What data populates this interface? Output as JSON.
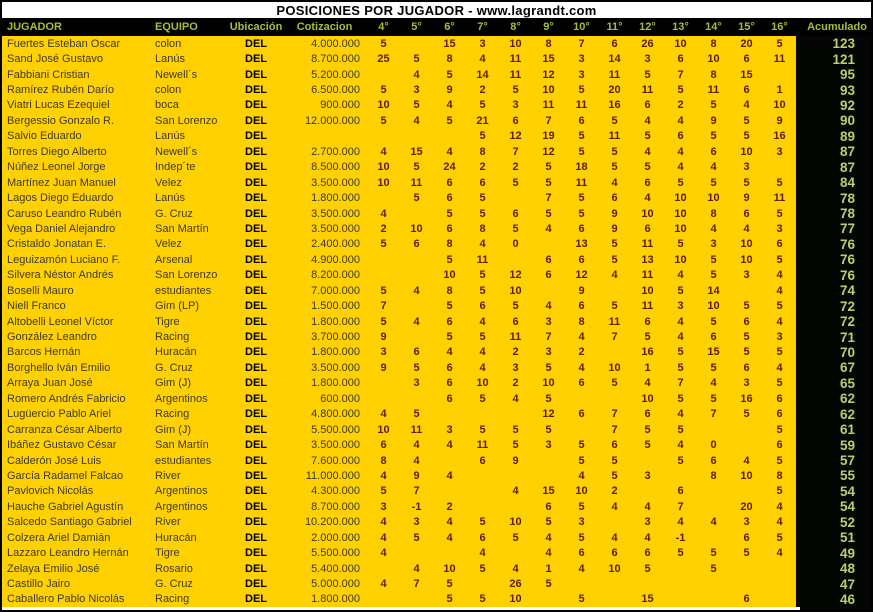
{
  "title": "POSICIONES POR JUGADOR - www.lagrandt.com",
  "columns": {
    "jugador": "JUGADOR",
    "equipo": "EQUIPO",
    "ubicacion": "Ubicación",
    "cotizacion": "Cotizacion",
    "positions": [
      "4°",
      "5°",
      "6°",
      "7°",
      "8°",
      "9°",
      "10°",
      "11°",
      "12°",
      "13°",
      "14°",
      "15°",
      "16°"
    ],
    "acumulado": "Acumulado"
  },
  "colors": {
    "title_bg": "#ffffff",
    "title_text": "#000000",
    "header_bg": "#000000",
    "header_text": "#a9bc33",
    "body_bg": "#ffd101",
    "name_text": "#3f3a2a",
    "number_text": "#5d1f04",
    "acumulado_bg": "#030603",
    "acumulado_text": "#bccf6b"
  },
  "rows": [
    {
      "jugador": "Fuertes Esteban Oscar",
      "equipo": "colon",
      "ubicacion": "DEL",
      "cotizacion": "4.000.000",
      "pos": [
        "5",
        "",
        "15",
        "3",
        "10",
        "8",
        "7",
        "6",
        "26",
        "10",
        "8",
        "20",
        "5"
      ],
      "acumulado": "123"
    },
    {
      "jugador": "Sand José Gustavo",
      "equipo": "Lanús",
      "ubicacion": "DEL",
      "cotizacion": "8.700.000",
      "pos": [
        "25",
        "5",
        "8",
        "4",
        "11",
        "15",
        "3",
        "14",
        "3",
        "6",
        "10",
        "6",
        "11"
      ],
      "acumulado": "121"
    },
    {
      "jugador": "Fabbiani Cristian",
      "equipo": "Newell´s",
      "ubicacion": "DEL",
      "cotizacion": "5.200.000",
      "pos": [
        "",
        "4",
        "5",
        "14",
        "11",
        "12",
        "3",
        "11",
        "5",
        "7",
        "8",
        "15",
        ""
      ],
      "acumulado": "95"
    },
    {
      "jugador": "Ramírez Rubén Darío",
      "equipo": "colon",
      "ubicacion": "DEL",
      "cotizacion": "6.500.000",
      "pos": [
        "5",
        "3",
        "9",
        "2",
        "5",
        "10",
        "5",
        "20",
        "11",
        "5",
        "11",
        "6",
        "1"
      ],
      "acumulado": "93"
    },
    {
      "jugador": "Viatri Lucas Ezequiel",
      "equipo": "boca",
      "ubicacion": "DEL",
      "cotizacion": "900.000",
      "pos": [
        "10",
        "5",
        "4",
        "5",
        "3",
        "11",
        "11",
        "16",
        "6",
        "2",
        "5",
        "4",
        "10"
      ],
      "acumulado": "92"
    },
    {
      "jugador": "Bergessio Gonzalo R.",
      "equipo": "San Lorenzo",
      "ubicacion": "DEL",
      "cotizacion": "12.000.000",
      "pos": [
        "5",
        "4",
        "5",
        "21",
        "6",
        "7",
        "6",
        "5",
        "4",
        "4",
        "9",
        "5",
        "9"
      ],
      "acumulado": "90"
    },
    {
      "jugador": "Salvio Eduardo",
      "equipo": "Lanús",
      "ubicacion": "DEL",
      "cotizacion": "",
      "pos": [
        "",
        "",
        "",
        "5",
        "12",
        "19",
        "5",
        "11",
        "5",
        "6",
        "5",
        "5",
        "16"
      ],
      "acumulado": "89"
    },
    {
      "jugador": "Torres Diego Alberto",
      "equipo": "Newell´s",
      "ubicacion": "DEL",
      "cotizacion": "2.700.000",
      "pos": [
        "4",
        "15",
        "4",
        "8",
        "7",
        "12",
        "5",
        "5",
        "4",
        "4",
        "6",
        "10",
        "3"
      ],
      "acumulado": "87"
    },
    {
      "jugador": "Núñez Leonel Jorge",
      "equipo": "Indep´te",
      "ubicacion": "DEL",
      "cotizacion": "8.500.000",
      "pos": [
        "10",
        "5",
        "24",
        "2",
        "2",
        "5",
        "18",
        "5",
        "5",
        "4",
        "4",
        "3",
        ""
      ],
      "acumulado": "87"
    },
    {
      "jugador": "Martínez Juan Manuel",
      "equipo": "Velez",
      "ubicacion": "DEL",
      "cotizacion": "3.500.000",
      "pos": [
        "10",
        "11",
        "6",
        "6",
        "5",
        "5",
        "11",
        "4",
        "6",
        "5",
        "5",
        "5",
        "5"
      ],
      "acumulado": "84"
    },
    {
      "jugador": "Lagos Diego Eduardo",
      "equipo": "Lanús",
      "ubicacion": "DEL",
      "cotizacion": "1.800.000",
      "pos": [
        "",
        "5",
        "6",
        "5",
        "",
        "7",
        "5",
        "6",
        "4",
        "10",
        "10",
        "9",
        "11"
      ],
      "acumulado": "78"
    },
    {
      "jugador": "Caruso Leandro Rubén",
      "equipo": "G. Cruz",
      "ubicacion": "DEL",
      "cotizacion": "3.500.000",
      "pos": [
        "4",
        "",
        "5",
        "5",
        "6",
        "5",
        "5",
        "9",
        "10",
        "10",
        "8",
        "6",
        "5"
      ],
      "acumulado": "78"
    },
    {
      "jugador": "Vega Daniel Alejandro",
      "equipo": "San Martín",
      "ubicacion": "DEL",
      "cotizacion": "3.500.000",
      "pos": [
        "2",
        "10",
        "6",
        "8",
        "5",
        "4",
        "6",
        "9",
        "6",
        "10",
        "4",
        "4",
        "3"
      ],
      "acumulado": "77"
    },
    {
      "jugador": "Cristaldo Jonatan E.",
      "equipo": "Velez",
      "ubicacion": "DEL",
      "cotizacion": "2.400.000",
      "pos": [
        "5",
        "6",
        "8",
        "4",
        "0",
        "",
        "13",
        "5",
        "11",
        "5",
        "3",
        "10",
        "6"
      ],
      "acumulado": "76"
    },
    {
      "jugador": "Leguizamón Luciano F.",
      "equipo": "Arsenal",
      "ubicacion": "DEL",
      "cotizacion": "4.900.000",
      "pos": [
        "",
        "",
        "5",
        "11",
        "",
        "6",
        "6",
        "5",
        "13",
        "10",
        "5",
        "10",
        "5"
      ],
      "acumulado": "76"
    },
    {
      "jugador": "Silvera Néstor Andrés",
      "equipo": "San Lorenzo",
      "ubicacion": "DEL",
      "cotizacion": "8.200.000",
      "pos": [
        "",
        "",
        "10",
        "5",
        "12",
        "6",
        "12",
        "4",
        "11",
        "4",
        "5",
        "3",
        "4"
      ],
      "acumulado": "76"
    },
    {
      "jugador": "Boselli Mauro",
      "equipo": "estudiantes",
      "ubicacion": "DEL",
      "cotizacion": "7.000.000",
      "pos": [
        "5",
        "4",
        "8",
        "5",
        "10",
        "",
        "9",
        "",
        "10",
        "5",
        "14",
        "",
        "4"
      ],
      "acumulado": "74"
    },
    {
      "jugador": "Niell Franco",
      "equipo": "Gim (LP)",
      "ubicacion": "DEL",
      "cotizacion": "1.500.000",
      "pos": [
        "7",
        "",
        "5",
        "6",
        "5",
        "4",
        "6",
        "5",
        "11",
        "3",
        "10",
        "5",
        "5"
      ],
      "acumulado": "72"
    },
    {
      "jugador": "Altobelli Leonel Víctor",
      "equipo": "Tigre",
      "ubicacion": "DEL",
      "cotizacion": "1.800.000",
      "pos": [
        "5",
        "4",
        "6",
        "4",
        "6",
        "3",
        "8",
        "11",
        "6",
        "4",
        "5",
        "6",
        "4"
      ],
      "acumulado": "72"
    },
    {
      "jugador": "González Leandro",
      "equipo": "Racing",
      "ubicacion": "DEL",
      "cotizacion": "3.700.000",
      "pos": [
        "9",
        "",
        "5",
        "5",
        "11",
        "7",
        "4",
        "7",
        "5",
        "4",
        "6",
        "5",
        "3"
      ],
      "acumulado": "71"
    },
    {
      "jugador": "Barcos Hernán",
      "equipo": "Huracán",
      "ubicacion": "DEL",
      "cotizacion": "1.800.000",
      "pos": [
        "3",
        "6",
        "4",
        "4",
        "2",
        "3",
        "2",
        "",
        "16",
        "5",
        "15",
        "5",
        "5"
      ],
      "acumulado": "70"
    },
    {
      "jugador": "Borghello Iván Emilio",
      "equipo": "G. Cruz",
      "ubicacion": "DEL",
      "cotizacion": "3.500.000",
      "pos": [
        "9",
        "5",
        "6",
        "4",
        "3",
        "5",
        "4",
        "10",
        "1",
        "5",
        "5",
        "6",
        "4"
      ],
      "acumulado": "67"
    },
    {
      "jugador": "Arraya Juan José",
      "equipo": "Gim (J)",
      "ubicacion": "DEL",
      "cotizacion": "1.800.000",
      "pos": [
        "",
        "3",
        "6",
        "10",
        "2",
        "10",
        "6",
        "5",
        "4",
        "7",
        "4",
        "3",
        "5"
      ],
      "acumulado": "65"
    },
    {
      "jugador": "Romero Andrés Fabricio",
      "equipo": "Argentinos",
      "ubicacion": "DEL",
      "cotizacion": "600.000",
      "pos": [
        "",
        "",
        "6",
        "5",
        "4",
        "5",
        "",
        "",
        "10",
        "5",
        "5",
        "16",
        "6"
      ],
      "acumulado": "62"
    },
    {
      "jugador": "Lugüercio Pablo Ariel",
      "equipo": "Racing",
      "ubicacion": "DEL",
      "cotizacion": "4.800.000",
      "pos": [
        "4",
        "5",
        "",
        "",
        "",
        "12",
        "6",
        "7",
        "6",
        "4",
        "7",
        "5",
        "6"
      ],
      "acumulado": "62"
    },
    {
      "jugador": "Carranza César Alberto",
      "equipo": "Gim (J)",
      "ubicacion": "DEL",
      "cotizacion": "5.500.000",
      "pos": [
        "10",
        "11",
        "3",
        "5",
        "5",
        "5",
        "",
        "7",
        "5",
        "5",
        "",
        "",
        "5"
      ],
      "acumulado": "61"
    },
    {
      "jugador": "Ibáñez Gustavo César",
      "equipo": "San Martín",
      "ubicacion": "DEL",
      "cotizacion": "3.500.000",
      "pos": [
        "6",
        "4",
        "4",
        "11",
        "5",
        "3",
        "5",
        "6",
        "5",
        "4",
        "0",
        "",
        "6"
      ],
      "acumulado": "59"
    },
    {
      "jugador": "Calderón José Luis",
      "equipo": "estudiantes",
      "ubicacion": "DEL",
      "cotizacion": "7.600.000",
      "pos": [
        "8",
        "4",
        "",
        "6",
        "9",
        "",
        "5",
        "5",
        "",
        "5",
        "6",
        "4",
        "5"
      ],
      "acumulado": "57"
    },
    {
      "jugador": "García Radamel Falcao",
      "equipo": "River",
      "ubicacion": "DEL",
      "cotizacion": "11.000.000",
      "pos": [
        "4",
        "9",
        "4",
        "",
        "",
        "",
        "4",
        "5",
        "3",
        "",
        "8",
        "10",
        "8"
      ],
      "acumulado": "55"
    },
    {
      "jugador": "Pavlovich Nicolás",
      "equipo": "Argentinos",
      "ubicacion": "DEL",
      "cotizacion": "4.300.000",
      "pos": [
        "5",
        "7",
        "",
        "",
        "4",
        "15",
        "10",
        "2",
        "",
        "6",
        "",
        "",
        "5"
      ],
      "acumulado": "54"
    },
    {
      "jugador": "Hauche Gabriel Agustín",
      "equipo": "Argentinos",
      "ubicacion": "DEL",
      "cotizacion": "8.700.000",
      "pos": [
        "3",
        "-1",
        "2",
        "",
        "",
        "6",
        "5",
        "4",
        "4",
        "7",
        "",
        "20",
        "4"
      ],
      "acumulado": "54"
    },
    {
      "jugador": "Salcedo Santiago Gabriel",
      "equipo": "River",
      "ubicacion": "DEL",
      "cotizacion": "10.200.000",
      "pos": [
        "4",
        "3",
        "4",
        "5",
        "10",
        "5",
        "3",
        "",
        "3",
        "4",
        "4",
        "3",
        "4"
      ],
      "acumulado": "52"
    },
    {
      "jugador": "Colzera Ariel Damián",
      "equipo": "Huracán",
      "ubicacion": "DEL",
      "cotizacion": "2.000.000",
      "pos": [
        "4",
        "5",
        "4",
        "6",
        "5",
        "4",
        "5",
        "4",
        "4",
        "-1",
        "",
        "6",
        "5"
      ],
      "acumulado": "51"
    },
    {
      "jugador": "Lazzaro Leandro Hernán",
      "equipo": "Tigre",
      "ubicacion": "DEL",
      "cotizacion": "5.500.000",
      "pos": [
        "4",
        "",
        "",
        "4",
        "",
        "4",
        "6",
        "6",
        "6",
        "5",
        "5",
        "5",
        "4"
      ],
      "acumulado": "49"
    },
    {
      "jugador": "Zelaya Emilio José",
      "equipo": "Rosario",
      "ubicacion": "DEL",
      "cotizacion": "5.400.000",
      "pos": [
        "",
        "4",
        "10",
        "5",
        "4",
        "1",
        "4",
        "10",
        "5",
        "",
        "5",
        "",
        ""
      ],
      "acumulado": "48"
    },
    {
      "jugador": "Castillo Jairo",
      "equipo": "G. Cruz",
      "ubicacion": "DEL",
      "cotizacion": "5.000.000",
      "pos": [
        "4",
        "7",
        "5",
        "",
        "26",
        "5",
        "",
        "",
        "",
        "",
        "",
        "",
        ""
      ],
      "acumulado": "47"
    },
    {
      "jugador": "Caballero Pablo Nicolás",
      "equipo": "Racing",
      "ubicacion": "DEL",
      "cotizacion": "1.800.000",
      "pos": [
        "",
        "",
        "5",
        "5",
        "10",
        "",
        "5",
        "",
        "15",
        "",
        "",
        "6",
        ""
      ],
      "acumulado": "46"
    }
  ]
}
